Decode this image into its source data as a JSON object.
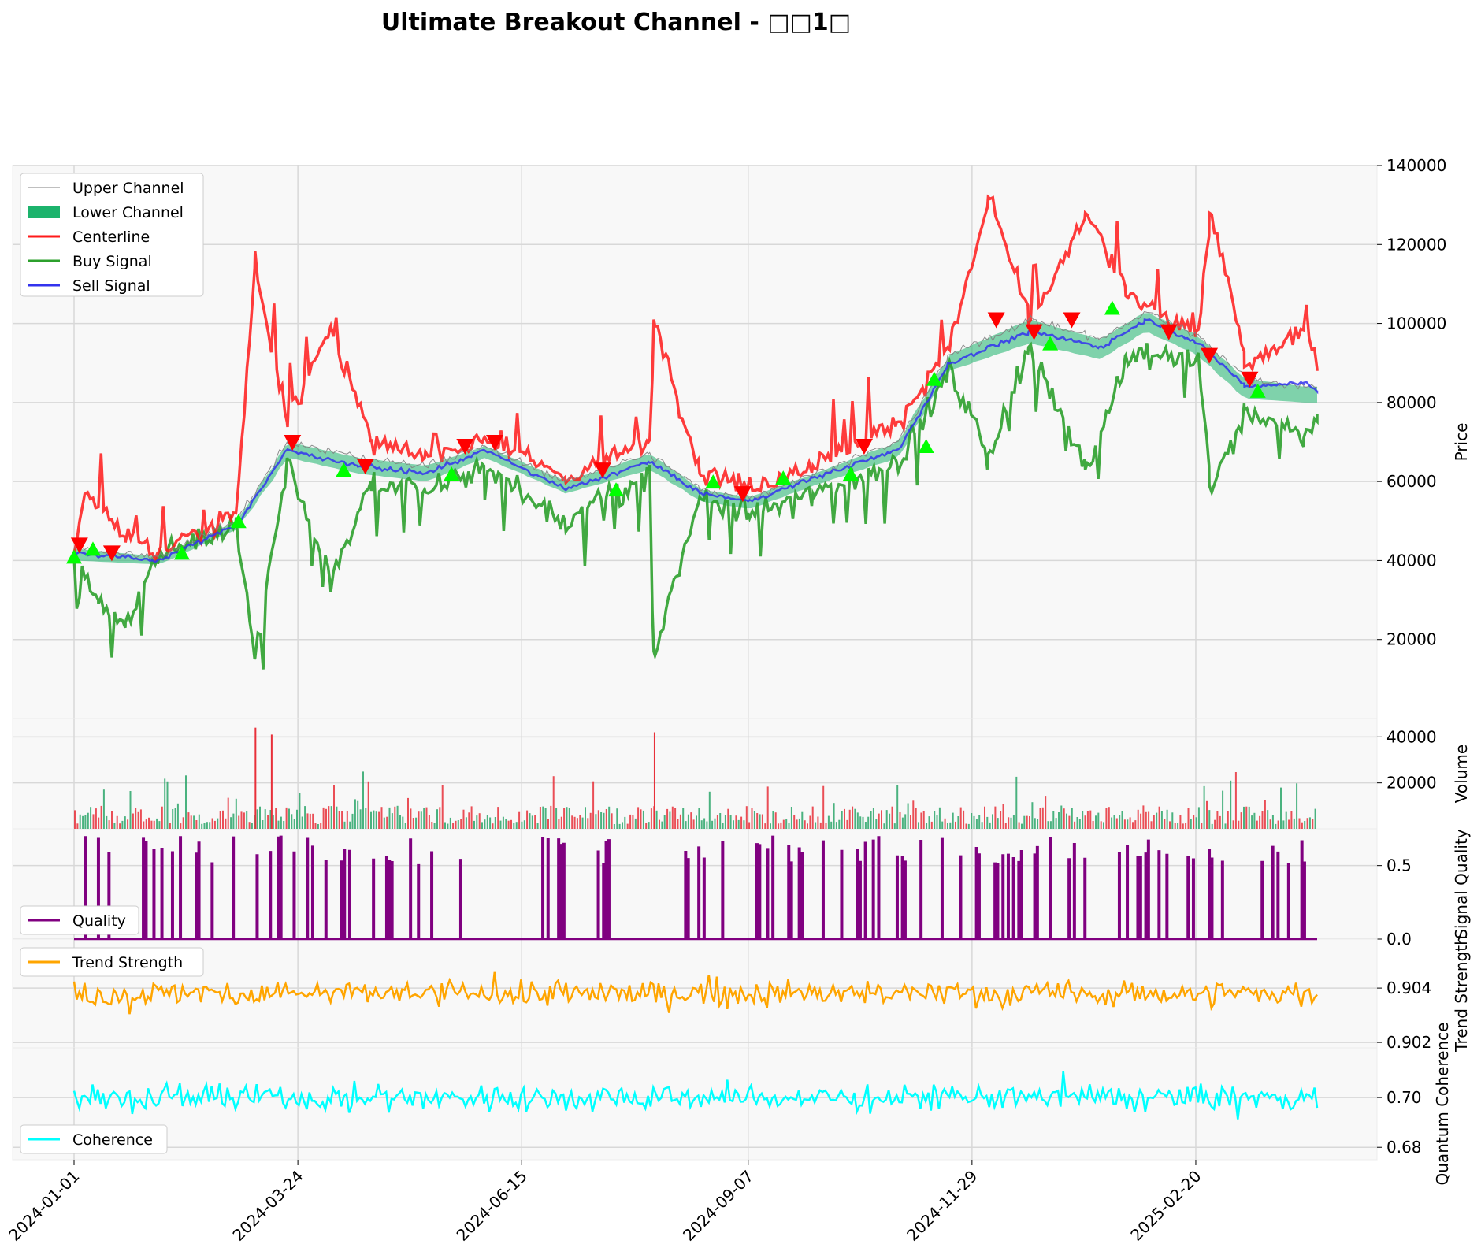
{
  "chart_data": {
    "title": "Ultimate Breakout Channel - □□1□",
    "x_dates": [
      "2024-01-01",
      "2024-03-24",
      "2024-06-15",
      "2024-09-07",
      "2024-11-29",
      "2025-02-20"
    ],
    "panels": [
      {
        "id": "price",
        "type": "line",
        "ylabel": "Price",
        "ylim": [
          0,
          140000
        ],
        "yticks": [
          "20000",
          "40000",
          "60000",
          "80000",
          "100000",
          "120000",
          "140000"
        ],
        "legend_position": "upper-left",
        "series": [
          {
            "name": "Upper Channel",
            "color": "#7f7f7f",
            "x": [
              "2024-01-01",
              "2024-02-01",
              "2024-03-01",
              "2024-03-20",
              "2024-04-15",
              "2024-05-10",
              "2024-06-01",
              "2024-07-01",
              "2024-08-01",
              "2024-08-20",
              "2024-09-07",
              "2024-10-01",
              "2024-11-01",
              "2024-11-20",
              "2024-12-20",
              "2025-01-15",
              "2025-02-01",
              "2025-02-20",
              "2025-03-10",
              "2025-04-01"
            ],
            "values": [
              43000,
              41000,
              50000,
              70000,
              66000,
              64000,
              69000,
              60000,
              67000,
              58000,
              56000,
              62000,
              70000,
              92000,
              101000,
              96000,
              103000,
              97000,
              86000,
              84000
            ]
          },
          {
            "name": "Lower Channel",
            "color": "#1cb36c",
            "x": [
              "2024-01-01",
              "2024-02-01",
              "2024-03-01",
              "2024-03-20",
              "2024-04-15",
              "2024-05-10",
              "2024-06-01",
              "2024-07-01",
              "2024-08-01",
              "2024-08-20",
              "2024-09-07",
              "2024-10-01",
              "2024-11-01",
              "2024-11-20",
              "2024-12-20",
              "2025-01-15",
              "2025-02-01",
              "2025-02-20",
              "2025-03-10",
              "2025-04-01"
            ],
            "values": [
              40000,
              39000,
              48000,
              66000,
              62000,
              60000,
              66000,
              57000,
              63000,
              55000,
              53000,
              59000,
              66000,
              88000,
              95000,
              91000,
              98000,
              92000,
              81000,
              80000
            ]
          },
          {
            "name": "Centerline",
            "color": "#ff1a1a",
            "x": [
              "2024-01-01",
              "2024-01-05",
              "2024-01-20",
              "2024-02-01",
              "2024-03-01",
              "2024-03-08",
              "2024-03-20",
              "2024-04-05",
              "2024-04-20",
              "2024-05-10",
              "2024-06-01",
              "2024-07-01",
              "2024-08-01",
              "2024-08-03",
              "2024-08-20",
              "2024-09-07",
              "2024-10-01",
              "2024-11-01",
              "2024-11-20",
              "2024-12-05",
              "2024-12-20",
              "2025-01-10",
              "2025-01-25",
              "2025-02-20",
              "2025-02-25",
              "2025-03-10",
              "2025-04-01",
              "2025-04-06"
            ],
            "values": [
              42000,
              57000,
              46000,
              42000,
              52000,
              114000,
              75000,
              99000,
              70000,
              66000,
              71000,
              61000,
              70000,
              101000,
              62000,
              59000,
              64000,
              75000,
              94000,
              132000,
              100000,
              128000,
              107000,
              98000,
              128000,
              89000,
              99000,
              88000
            ]
          },
          {
            "name": "Buy Signal",
            "color": "#2ca02c",
            "x": [
              "2024-01-01",
              "2024-01-10",
              "2024-01-20",
              "2024-02-01",
              "2024-03-01",
              "2024-03-08",
              "2024-03-20",
              "2024-04-05",
              "2024-04-20",
              "2024-05-10",
              "2024-06-01",
              "2024-07-01",
              "2024-08-01",
              "2024-08-03",
              "2024-08-20",
              "2024-09-07",
              "2024-10-01",
              "2024-11-01",
              "2024-11-20",
              "2024-12-05",
              "2024-12-20",
              "2025-01-10",
              "2025-01-25",
              "2025-02-20",
              "2025-02-25",
              "2025-03-10",
              "2025-04-01",
              "2025-04-06"
            ],
            "values": [
              41000,
              30000,
              23000,
              41000,
              50000,
              15000,
              66000,
              34000,
              60000,
              58000,
              64000,
              50000,
              62000,
              17000,
              56000,
              52000,
              57000,
              65000,
              88000,
              67000,
              94000,
              63000,
              92000,
              91000,
              59000,
              78000,
              71000,
              77000
            ]
          },
          {
            "name": "Sell Signal",
            "color": "#3333ee",
            "x": [
              "2024-01-01",
              "2024-02-01",
              "2024-03-01",
              "2024-03-20",
              "2024-04-15",
              "2024-05-10",
              "2024-06-01",
              "2024-07-01",
              "2024-08-01",
              "2024-08-20",
              "2024-09-07",
              "2024-10-01",
              "2024-11-01",
              "2024-11-20",
              "2024-12-20",
              "2025-01-15",
              "2025-02-01",
              "2025-02-20",
              "2025-03-10",
              "2025-04-01",
              "2025-04-06"
            ],
            "values": [
              42000,
              40000,
              49000,
              68000,
              64000,
              62000,
              68000,
              58000,
              65000,
              57000,
              55000,
              61000,
              68000,
              90000,
              98000,
              94000,
              101000,
              95000,
              84000,
              85000,
              83000
            ]
          }
        ],
        "markers": {
          "buy_up_triangles_x": [
            "2024-01-01",
            "2024-01-08",
            "2024-02-10",
            "2024-03-02",
            "2024-04-10",
            "2024-05-20",
            "2024-07-20",
            "2024-08-25",
            "2024-09-20",
            "2024-10-15",
            "2024-11-12",
            "2024-11-15",
            "2024-12-28",
            "2025-01-20",
            "2025-03-15"
          ],
          "buy_up_triangles_y": [
            41000,
            43000,
            42000,
            50000,
            63000,
            62000,
            58000,
            60000,
            61000,
            62000,
            69000,
            86000,
            95000,
            104000,
            83000
          ],
          "sell_down_triangles_x": [
            "2024-01-03",
            "2024-01-15",
            "2024-03-22",
            "2024-04-18",
            "2024-05-25",
            "2024-06-05",
            "2024-07-15",
            "2024-09-05",
            "2024-10-20",
            "2024-12-08",
            "2024-12-22",
            "2025-01-05",
            "2025-02-10",
            "2025-02-25",
            "2025-03-12"
          ],
          "sell_down_triangles_y": [
            44000,
            42000,
            70000,
            64000,
            69000,
            70000,
            63000,
            57000,
            69000,
            101000,
            98000,
            101000,
            98000,
            92000,
            86000
          ]
        }
      },
      {
        "id": "volume",
        "type": "bar",
        "ylabel": "Volume",
        "ylim": [
          0,
          48000
        ],
        "yticks": [
          "20000",
          "40000"
        ],
        "colors": {
          "up": "#2ca66a",
          "down": "#e8303a"
        }
      },
      {
        "id": "quality",
        "type": "line",
        "ylabel": "Signal Quality",
        "ylim": [
          0,
          0.75
        ],
        "yticks": [
          "0.0",
          "0.5"
        ],
        "legend_position": "lower-left",
        "series": [
          {
            "name": "Quality",
            "color": "#800080"
          }
        ]
      },
      {
        "id": "trend",
        "type": "line",
        "ylabel": "Trend Strength",
        "ylim": [
          0.9018,
          0.9058
        ],
        "yticks": [
          "0.902",
          "0.904"
        ],
        "legend_position": "upper-left",
        "series": [
          {
            "name": "Trend Strength",
            "color": "#ffa500"
          }
        ]
      },
      {
        "id": "coherence",
        "type": "line",
        "ylabel": "Quantum Coherence",
        "ylim": [
          0.675,
          0.72
        ],
        "yticks": [
          "0.68",
          "0.70"
        ],
        "legend_position": "lower-left",
        "series": [
          {
            "name": "Coherence",
            "color": "#00ffff"
          }
        ]
      }
    ]
  }
}
